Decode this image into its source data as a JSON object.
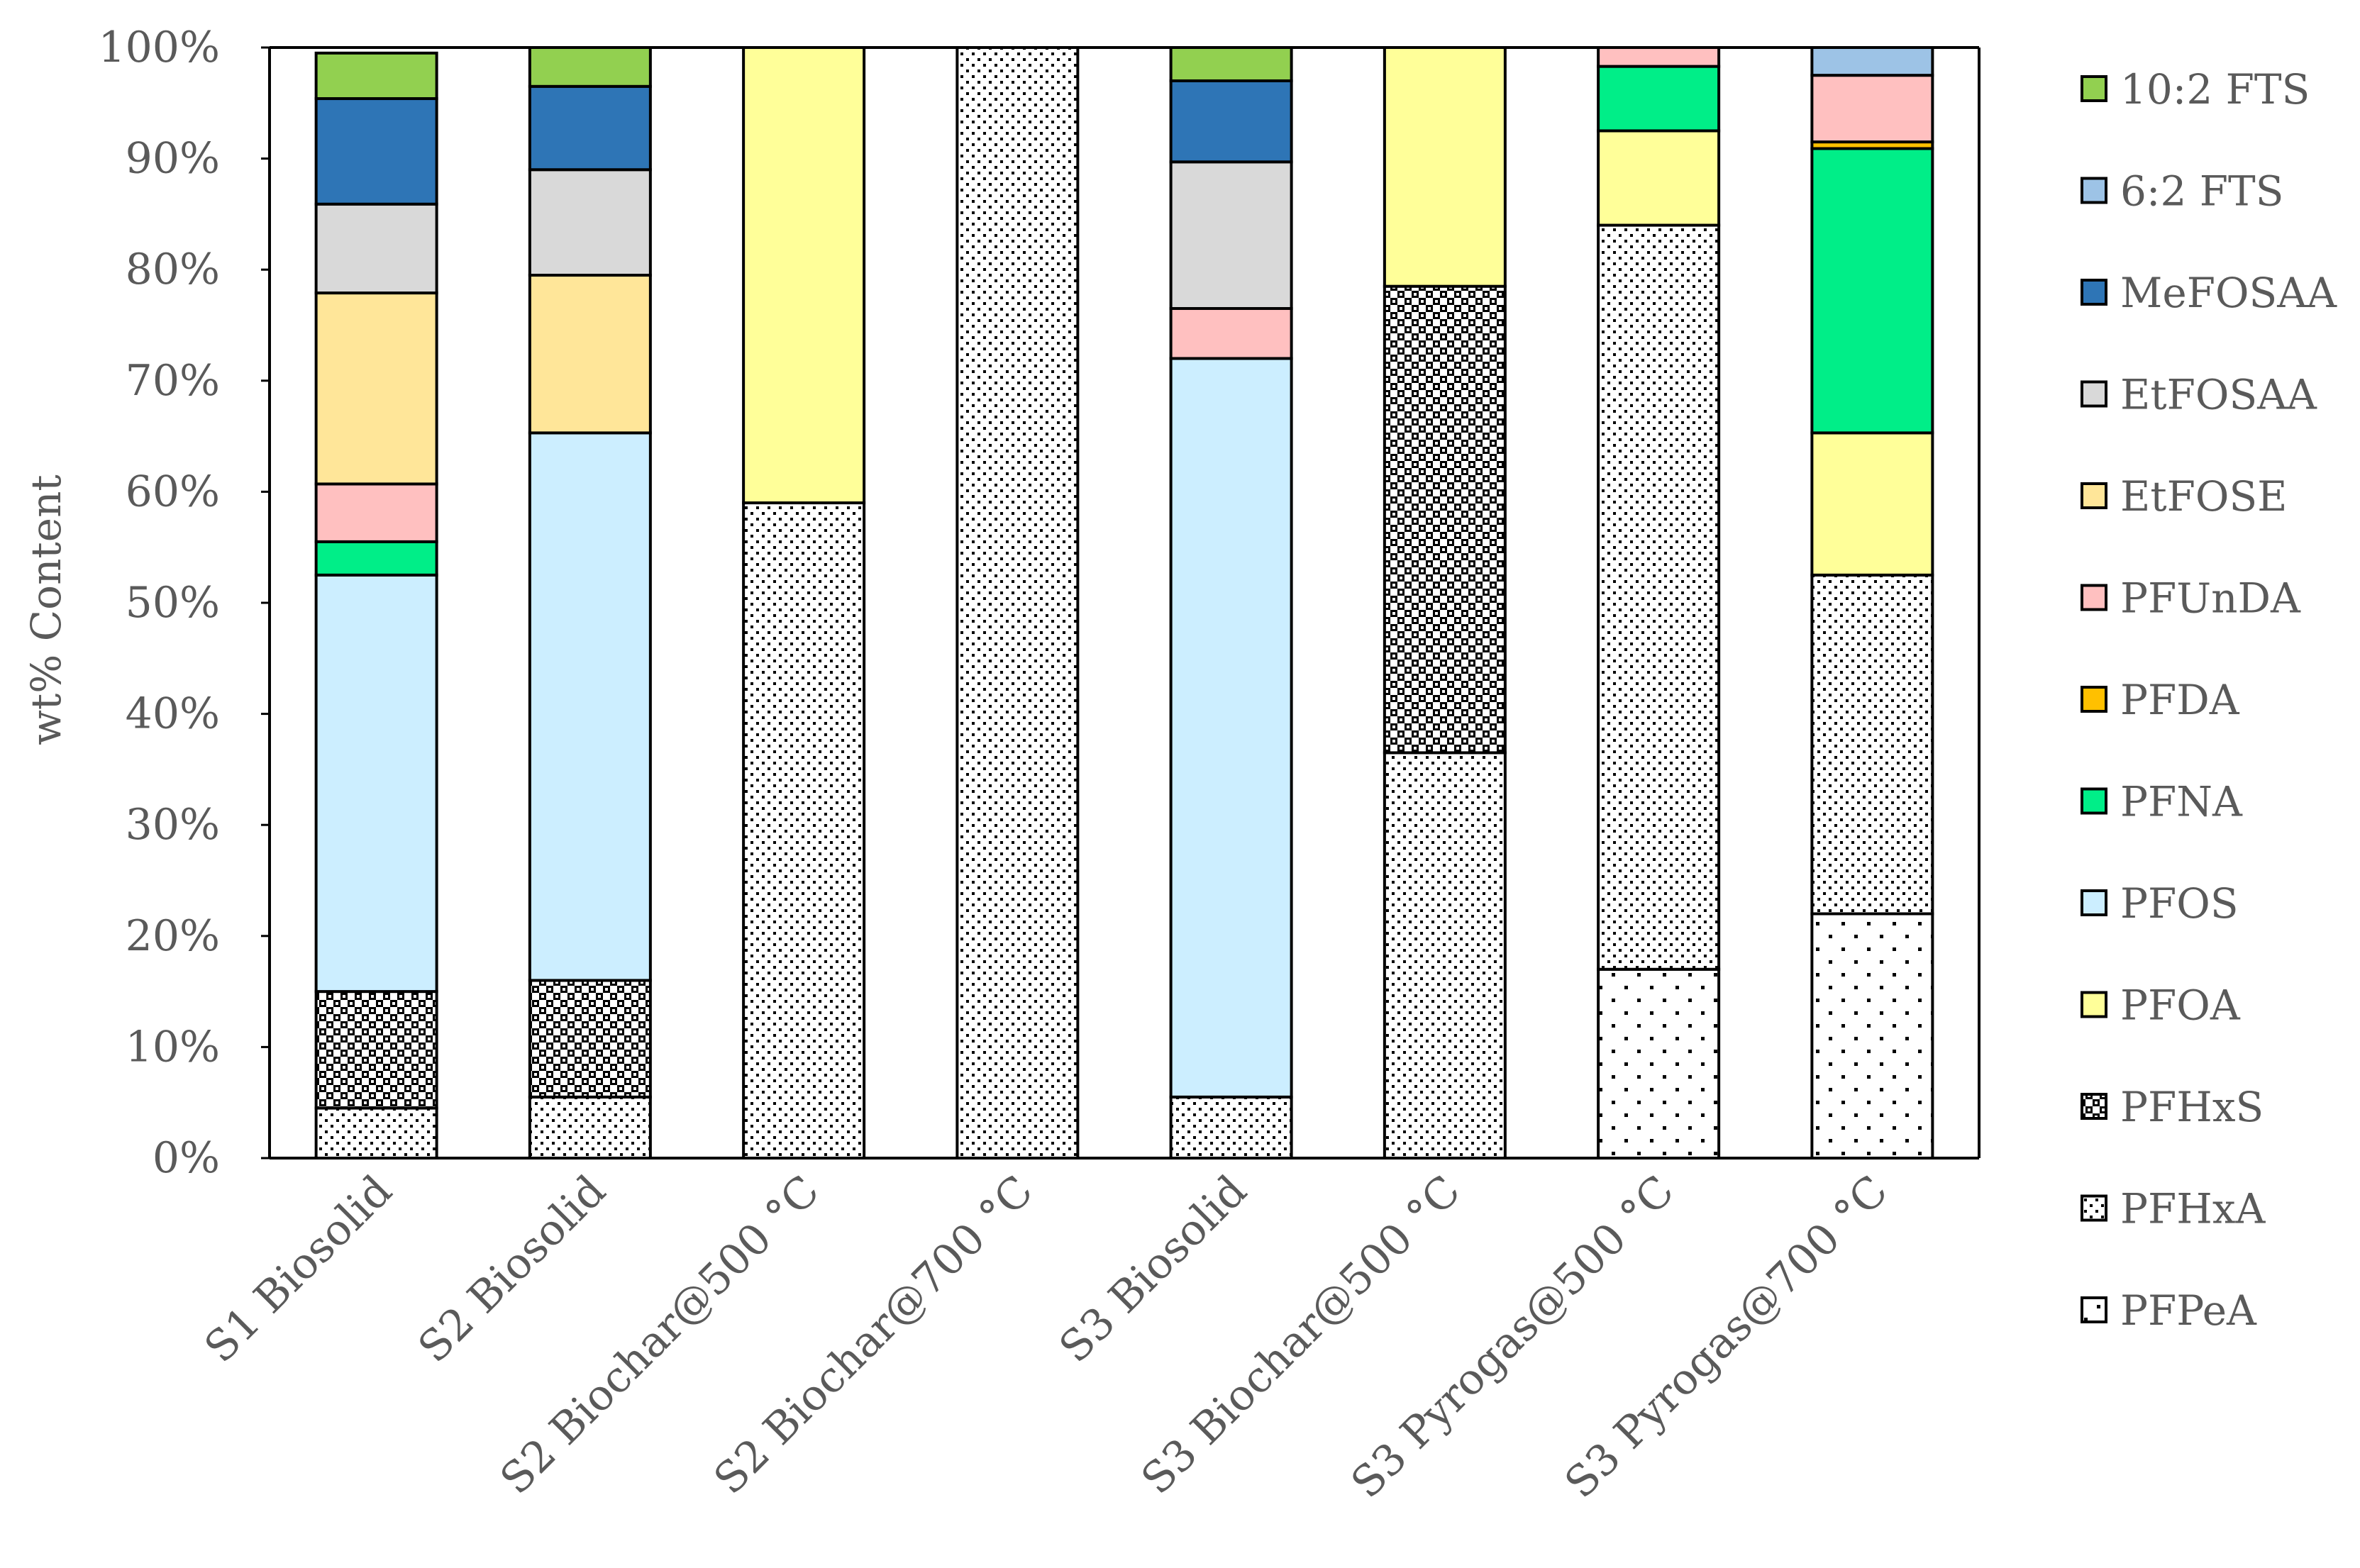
{
  "chart_data": {
    "type": "bar",
    "stacked": true,
    "normalized": true,
    "title": "",
    "xlabel": "",
    "ylabel": "wt% Content",
    "ylim": [
      0,
      100
    ],
    "y_ticks": [
      "0%",
      "10%",
      "20%",
      "30%",
      "40%",
      "50%",
      "60%",
      "70%",
      "80%",
      "90%",
      "100%"
    ],
    "categories": [
      "S1 Biosolid",
      "S2 Biosolid",
      "S2 Biochar@500 °C",
      "S2 Biochar@700 °C",
      "S3 Biosolid",
      "S3 Biochar@500 °C",
      "S3 Pyrogas@500 °C",
      "S3 Pyrogas@700 °C"
    ],
    "series": [
      {
        "name": "PFPeA",
        "color": "#ffffff",
        "pattern": "sparse-dots",
        "values": [
          0,
          0,
          0,
          0,
          0,
          0,
          17,
          22
        ]
      },
      {
        "name": "PFHxA",
        "color": "#ffffff",
        "pattern": "dense-dots",
        "values": [
          4.5,
          5.5,
          59,
          100,
          5.5,
          36.5,
          67,
          30.5
        ]
      },
      {
        "name": "PFHxS",
        "color": "#ffffff",
        "pattern": "checker",
        "values": [
          10.5,
          10.5,
          0,
          0,
          0,
          42,
          0,
          0
        ]
      },
      {
        "name": "PFOA",
        "color": "#ffff99",
        "values": [
          0,
          0,
          41,
          0,
          0,
          21.5,
          8.5,
          12.8
        ]
      },
      {
        "name": "PFOS",
        "color": "#cceeff",
        "values": [
          37.5,
          49.3,
          0,
          0,
          66.5,
          0,
          0,
          0
        ]
      },
      {
        "name": "PFNA",
        "color": "#00ee88",
        "values": [
          3,
          0,
          0,
          0,
          0,
          0,
          5.8,
          25.6
        ]
      },
      {
        "name": "PFDA",
        "color": "#ffc000",
        "values": [
          0,
          0,
          0,
          0,
          0,
          0,
          0,
          0.6
        ]
      },
      {
        "name": "PFUnDA",
        "color": "#ffc0c0",
        "values": [
          5.2,
          0,
          0,
          0,
          4.5,
          0,
          1.7,
          6
        ]
      },
      {
        "name": "EtFOSE",
        "color": "#ffe699",
        "values": [
          17.2,
          14.2,
          0,
          0,
          0,
          0,
          0,
          0
        ]
      },
      {
        "name": "EtFOSAA",
        "color": "#d9d9d9",
        "values": [
          8,
          9.5,
          0,
          0,
          13.2,
          0,
          0,
          0
        ]
      },
      {
        "name": "MeFOSAA",
        "color": "#2e75b6",
        "values": [
          9.5,
          7.5,
          0,
          0,
          7.3,
          0,
          0,
          0
        ]
      },
      {
        "name": "6:2 FTS",
        "color": "#9dc3e6",
        "values": [
          0,
          0,
          0,
          0,
          0,
          0,
          0,
          2.5
        ]
      },
      {
        "name": "10:2 FTS",
        "color": "#92d050",
        "values": [
          4.1,
          3.5,
          0,
          0,
          3,
          0,
          0,
          0
        ]
      }
    ],
    "legend_order": [
      "10:2 FTS",
      "6:2 FTS",
      "MeFOSAA",
      "EtFOSAA",
      "EtFOSE",
      "PFUnDA",
      "PFDA",
      "PFNA",
      "PFOS",
      "PFOA",
      "PFHxS",
      "PFHxA",
      "PFPeA"
    ],
    "legend_position": "right",
    "grid": false
  }
}
